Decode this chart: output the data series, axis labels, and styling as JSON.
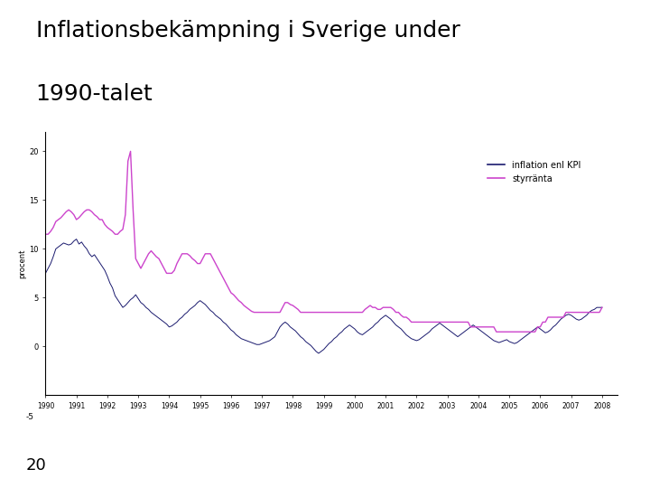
{
  "title_line1": "Inflationsbekämpning i Sverige under",
  "title_line2": "1990-talet",
  "ylabel": "procent",
  "legend_inflation": "inflation enl KPI",
  "legend_styrränta": "styrränta",
  "line_color_inflation": "#1a1a6e",
  "line_color_styrränta": "#cc44cc",
  "background_color": "#ffffff",
  "title_color": "#000000",
  "separator_color": "#1a3a1a",
  "ylim": [
    -5,
    22
  ],
  "yticks": [
    0,
    5,
    10,
    15,
    20
  ],
  "ytick_labels": [
    "0",
    "5",
    "10",
    "15",
    "20"
  ],
  "minus5_label": "-5",
  "page_number": "20",
  "inflation_data": {
    "years": [
      1990.0,
      1990.083,
      1990.167,
      1990.25,
      1990.333,
      1990.417,
      1990.5,
      1990.583,
      1990.667,
      1990.75,
      1990.833,
      1990.917,
      1991.0,
      1991.083,
      1991.167,
      1991.25,
      1991.333,
      1991.417,
      1991.5,
      1991.583,
      1991.667,
      1991.75,
      1991.833,
      1991.917,
      1992.0,
      1992.083,
      1992.167,
      1992.25,
      1992.333,
      1992.417,
      1992.5,
      1992.583,
      1992.667,
      1992.75,
      1992.833,
      1992.917,
      1993.0,
      1993.083,
      1993.167,
      1993.25,
      1993.333,
      1993.417,
      1993.5,
      1993.583,
      1993.667,
      1993.75,
      1993.833,
      1993.917,
      1994.0,
      1994.083,
      1994.167,
      1994.25,
      1994.333,
      1994.417,
      1994.5,
      1994.583,
      1994.667,
      1994.75,
      1994.833,
      1994.917,
      1995.0,
      1995.083,
      1995.167,
      1995.25,
      1995.333,
      1995.417,
      1995.5,
      1995.583,
      1995.667,
      1995.75,
      1995.833,
      1995.917,
      1996.0,
      1996.083,
      1996.167,
      1996.25,
      1996.333,
      1996.417,
      1996.5,
      1996.583,
      1996.667,
      1996.75,
      1996.833,
      1996.917,
      1997.0,
      1997.083,
      1997.167,
      1997.25,
      1997.333,
      1997.417,
      1997.5,
      1997.583,
      1997.667,
      1997.75,
      1997.833,
      1997.917,
      1998.0,
      1998.083,
      1998.167,
      1998.25,
      1998.333,
      1998.417,
      1998.5,
      1998.583,
      1998.667,
      1998.75,
      1998.833,
      1998.917,
      1999.0,
      1999.083,
      1999.167,
      1999.25,
      1999.333,
      1999.417,
      1999.5,
      1999.583,
      1999.667,
      1999.75,
      1999.833,
      1999.917,
      2000.0,
      2000.083,
      2000.167,
      2000.25,
      2000.333,
      2000.417,
      2000.5,
      2000.583,
      2000.667,
      2000.75,
      2000.833,
      2000.917,
      2001.0,
      2001.083,
      2001.167,
      2001.25,
      2001.333,
      2001.417,
      2001.5,
      2001.583,
      2001.667,
      2001.75,
      2001.833,
      2001.917,
      2002.0,
      2002.083,
      2002.167,
      2002.25,
      2002.333,
      2002.417,
      2002.5,
      2002.583,
      2002.667,
      2002.75,
      2002.833,
      2002.917,
      2003.0,
      2003.083,
      2003.167,
      2003.25,
      2003.333,
      2003.417,
      2003.5,
      2003.583,
      2003.667,
      2003.75,
      2003.833,
      2003.917,
      2004.0,
      2004.083,
      2004.167,
      2004.25,
      2004.333,
      2004.417,
      2004.5,
      2004.583,
      2004.667,
      2004.75,
      2004.833,
      2004.917,
      2005.0,
      2005.083,
      2005.167,
      2005.25,
      2005.333,
      2005.417,
      2005.5,
      2005.583,
      2005.667,
      2005.75,
      2005.833,
      2005.917,
      2006.0,
      2006.083,
      2006.167,
      2006.25,
      2006.333,
      2006.417,
      2006.5,
      2006.583,
      2006.667,
      2006.75,
      2006.833,
      2006.917,
      2007.0,
      2007.083,
      2007.167,
      2007.25,
      2007.333,
      2007.417,
      2007.5,
      2007.583,
      2007.667,
      2007.75,
      2007.833,
      2007.917,
      2008.0
    ],
    "values": [
      7.5,
      8.0,
      8.5,
      9.2,
      10.0,
      10.2,
      10.4,
      10.6,
      10.5,
      10.4,
      10.5,
      10.8,
      11.0,
      10.5,
      10.7,
      10.3,
      10.0,
      9.5,
      9.2,
      9.4,
      9.0,
      8.6,
      8.2,
      7.8,
      7.2,
      6.5,
      6.0,
      5.2,
      4.8,
      4.4,
      4.0,
      4.2,
      4.5,
      4.8,
      5.0,
      5.3,
      4.9,
      4.5,
      4.3,
      4.0,
      3.8,
      3.5,
      3.3,
      3.1,
      2.9,
      2.7,
      2.5,
      2.3,
      2.0,
      2.1,
      2.3,
      2.5,
      2.8,
      3.0,
      3.3,
      3.5,
      3.8,
      4.0,
      4.2,
      4.5,
      4.7,
      4.5,
      4.3,
      4.0,
      3.7,
      3.5,
      3.2,
      3.0,
      2.8,
      2.5,
      2.3,
      2.0,
      1.7,
      1.5,
      1.2,
      1.0,
      0.8,
      0.7,
      0.6,
      0.5,
      0.4,
      0.3,
      0.2,
      0.2,
      0.3,
      0.4,
      0.5,
      0.6,
      0.8,
      1.0,
      1.5,
      2.0,
      2.3,
      2.5,
      2.3,
      2.0,
      1.8,
      1.6,
      1.3,
      1.0,
      0.8,
      0.5,
      0.3,
      0.1,
      -0.2,
      -0.5,
      -0.7,
      -0.5,
      -0.3,
      0.0,
      0.3,
      0.5,
      0.8,
      1.0,
      1.3,
      1.5,
      1.8,
      2.0,
      2.2,
      2.0,
      1.8,
      1.5,
      1.3,
      1.2,
      1.4,
      1.6,
      1.8,
      2.0,
      2.3,
      2.5,
      2.8,
      3.0,
      3.2,
      3.0,
      2.8,
      2.5,
      2.2,
      2.0,
      1.8,
      1.5,
      1.2,
      1.0,
      0.8,
      0.7,
      0.6,
      0.7,
      0.9,
      1.1,
      1.3,
      1.5,
      1.8,
      2.0,
      2.2,
      2.4,
      2.2,
      2.0,
      1.8,
      1.6,
      1.4,
      1.2,
      1.0,
      1.2,
      1.4,
      1.6,
      1.8,
      2.0,
      2.2,
      2.0,
      1.8,
      1.6,
      1.4,
      1.2,
      1.0,
      0.8,
      0.6,
      0.5,
      0.4,
      0.5,
      0.6,
      0.7,
      0.5,
      0.4,
      0.3,
      0.4,
      0.6,
      0.8,
      1.0,
      1.2,
      1.4,
      1.6,
      1.8,
      2.0,
      1.8,
      1.6,
      1.4,
      1.5,
      1.7,
      2.0,
      2.2,
      2.5,
      2.8,
      3.0,
      3.2,
      3.3,
      3.2,
      3.0,
      2.8,
      2.7,
      2.8,
      3.0,
      3.2,
      3.5,
      3.7,
      3.8,
      4.0,
      4.0,
      4.0
    ]
  },
  "styrränta_data": {
    "years": [
      1990.0,
      1990.083,
      1990.167,
      1990.25,
      1990.333,
      1990.417,
      1990.5,
      1990.583,
      1990.667,
      1990.75,
      1990.833,
      1990.917,
      1991.0,
      1991.083,
      1991.167,
      1991.25,
      1991.333,
      1991.417,
      1991.5,
      1991.583,
      1991.667,
      1991.75,
      1991.833,
      1991.917,
      1992.0,
      1992.083,
      1992.167,
      1992.25,
      1992.333,
      1992.417,
      1992.5,
      1992.583,
      1992.667,
      1992.75,
      1992.833,
      1992.917,
      1993.0,
      1993.083,
      1993.167,
      1993.25,
      1993.333,
      1993.417,
      1993.5,
      1993.583,
      1993.667,
      1993.75,
      1993.833,
      1993.917,
      1994.0,
      1994.083,
      1994.167,
      1994.25,
      1994.333,
      1994.417,
      1994.5,
      1994.583,
      1994.667,
      1994.75,
      1994.833,
      1994.917,
      1995.0,
      1995.083,
      1995.167,
      1995.25,
      1995.333,
      1995.417,
      1995.5,
      1995.583,
      1995.667,
      1995.75,
      1995.833,
      1995.917,
      1996.0,
      1996.083,
      1996.167,
      1996.25,
      1996.333,
      1996.417,
      1996.5,
      1996.583,
      1996.667,
      1996.75,
      1996.833,
      1996.917,
      1997.0,
      1997.083,
      1997.167,
      1997.25,
      1997.333,
      1997.417,
      1997.5,
      1997.583,
      1997.667,
      1997.75,
      1997.833,
      1997.917,
      1998.0,
      1998.083,
      1998.167,
      1998.25,
      1998.333,
      1998.417,
      1998.5,
      1998.583,
      1998.667,
      1998.75,
      1998.833,
      1998.917,
      1999.0,
      1999.083,
      1999.167,
      1999.25,
      1999.333,
      1999.417,
      1999.5,
      1999.583,
      1999.667,
      1999.75,
      1999.833,
      1999.917,
      2000.0,
      2000.083,
      2000.167,
      2000.25,
      2000.333,
      2000.417,
      2000.5,
      2000.583,
      2000.667,
      2000.75,
      2000.833,
      2000.917,
      2001.0,
      2001.083,
      2001.167,
      2001.25,
      2001.333,
      2001.417,
      2001.5,
      2001.583,
      2001.667,
      2001.75,
      2001.833,
      2001.917,
      2002.0,
      2002.083,
      2002.167,
      2002.25,
      2002.333,
      2002.417,
      2002.5,
      2002.583,
      2002.667,
      2002.75,
      2002.833,
      2002.917,
      2003.0,
      2003.083,
      2003.167,
      2003.25,
      2003.333,
      2003.417,
      2003.5,
      2003.583,
      2003.667,
      2003.75,
      2003.833,
      2003.917,
      2004.0,
      2004.083,
      2004.167,
      2004.25,
      2004.333,
      2004.417,
      2004.5,
      2004.583,
      2004.667,
      2004.75,
      2004.833,
      2004.917,
      2005.0,
      2005.083,
      2005.167,
      2005.25,
      2005.333,
      2005.417,
      2005.5,
      2005.583,
      2005.667,
      2005.75,
      2005.833,
      2005.917,
      2006.0,
      2006.083,
      2006.167,
      2006.25,
      2006.333,
      2006.417,
      2006.5,
      2006.583,
      2006.667,
      2006.75,
      2006.833,
      2006.917,
      2007.0,
      2007.083,
      2007.167,
      2007.25,
      2007.333,
      2007.417,
      2007.5,
      2007.583,
      2007.667,
      2007.75,
      2007.833,
      2007.917,
      2008.0
    ],
    "values": [
      11.5,
      11.5,
      11.8,
      12.2,
      12.8,
      13.0,
      13.2,
      13.5,
      13.8,
      14.0,
      13.8,
      13.5,
      13.0,
      13.2,
      13.5,
      13.8,
      14.0,
      14.0,
      13.8,
      13.5,
      13.3,
      13.0,
      13.0,
      12.5,
      12.2,
      12.0,
      11.8,
      11.5,
      11.5,
      11.8,
      12.0,
      13.5,
      19.0,
      20.0,
      14.0,
      9.0,
      8.5,
      8.0,
      8.5,
      9.0,
      9.5,
      9.8,
      9.5,
      9.2,
      9.0,
      8.5,
      8.0,
      7.5,
      7.5,
      7.5,
      7.8,
      8.5,
      9.0,
      9.5,
      9.5,
      9.5,
      9.3,
      9.0,
      8.8,
      8.5,
      8.5,
      9.0,
      9.5,
      9.5,
      9.5,
      9.0,
      8.5,
      8.0,
      7.5,
      7.0,
      6.5,
      6.0,
      5.5,
      5.3,
      5.0,
      4.7,
      4.5,
      4.2,
      4.0,
      3.8,
      3.6,
      3.5,
      3.5,
      3.5,
      3.5,
      3.5,
      3.5,
      3.5,
      3.5,
      3.5,
      3.5,
      3.5,
      4.0,
      4.5,
      4.5,
      4.3,
      4.2,
      4.0,
      3.8,
      3.5,
      3.5,
      3.5,
      3.5,
      3.5,
      3.5,
      3.5,
      3.5,
      3.5,
      3.5,
      3.5,
      3.5,
      3.5,
      3.5,
      3.5,
      3.5,
      3.5,
      3.5,
      3.5,
      3.5,
      3.5,
      3.5,
      3.5,
      3.5,
      3.5,
      3.8,
      4.0,
      4.2,
      4.0,
      4.0,
      3.8,
      3.8,
      4.0,
      4.0,
      4.0,
      4.0,
      3.8,
      3.5,
      3.5,
      3.2,
      3.0,
      3.0,
      2.8,
      2.5,
      2.5,
      2.5,
      2.5,
      2.5,
      2.5,
      2.5,
      2.5,
      2.5,
      2.5,
      2.5,
      2.5,
      2.5,
      2.5,
      2.5,
      2.5,
      2.5,
      2.5,
      2.5,
      2.5,
      2.5,
      2.5,
      2.5,
      2.0,
      2.0,
      2.0,
      2.0,
      2.0,
      2.0,
      2.0,
      2.0,
      2.0,
      2.0,
      1.5,
      1.5,
      1.5,
      1.5,
      1.5,
      1.5,
      1.5,
      1.5,
      1.5,
      1.5,
      1.5,
      1.5,
      1.5,
      1.5,
      1.5,
      1.5,
      2.0,
      2.0,
      2.5,
      2.5,
      3.0,
      3.0,
      3.0,
      3.0,
      3.0,
      3.0,
      3.0,
      3.5,
      3.5,
      3.5,
      3.5,
      3.5,
      3.5,
      3.5,
      3.5,
      3.5,
      3.5,
      3.5,
      3.5,
      3.5,
      3.5,
      4.0
    ]
  }
}
